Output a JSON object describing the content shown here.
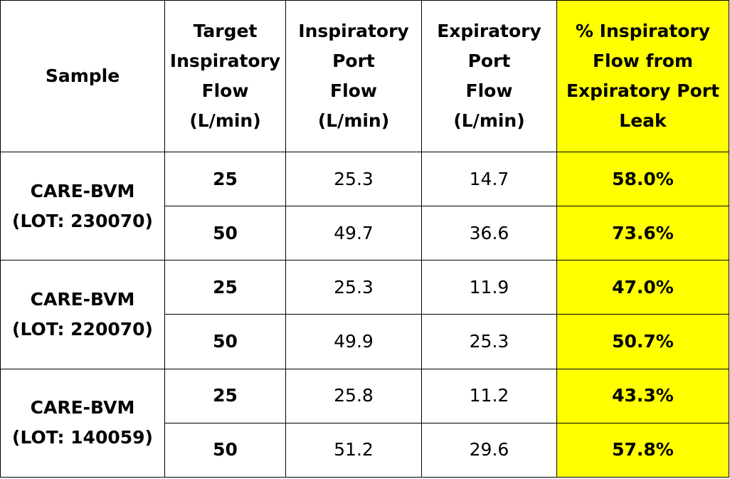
{
  "table": {
    "headers": {
      "sample": "Sample",
      "target": [
        "Target",
        "Inspiratory",
        "Flow",
        "(L/min)"
      ],
      "insp_port": [
        "Inspiratory",
        "Port",
        "Flow",
        "(L/min)"
      ],
      "exp_port": [
        "Expiratory",
        "Port",
        "Flow",
        "(L/min)"
      ],
      "pct_leak": [
        "% Inspiratory",
        "Flow from",
        "Expiratory Port",
        "Leak"
      ]
    },
    "groups": [
      {
        "sample": [
          "CARE-BVM",
          "(LOT: 230070)"
        ],
        "rows": [
          {
            "target": "25",
            "insp": "25.3",
            "exp": "14.7",
            "pct": "58.0%"
          },
          {
            "target": "50",
            "insp": "49.7",
            "exp": "36.6",
            "pct": "73.6%"
          }
        ]
      },
      {
        "sample": [
          "CARE-BVM",
          "(LOT: 220070)"
        ],
        "rows": [
          {
            "target": "25",
            "insp": "25.3",
            "exp": "11.9",
            "pct": "47.0%"
          },
          {
            "target": "50",
            "insp": "49.9",
            "exp": "25.3",
            "pct": "50.7%"
          }
        ]
      },
      {
        "sample": [
          "CARE-BVM",
          "(LOT: 140059)"
        ],
        "rows": [
          {
            "target": "25",
            "insp": "25.8",
            "exp": "11.2",
            "pct": "43.3%"
          },
          {
            "target": "50",
            "insp": "51.2",
            "exp": "29.6",
            "pct": "57.8%"
          }
        ]
      }
    ],
    "colors": {
      "highlight": "#ffff00",
      "border": "#000000"
    }
  }
}
